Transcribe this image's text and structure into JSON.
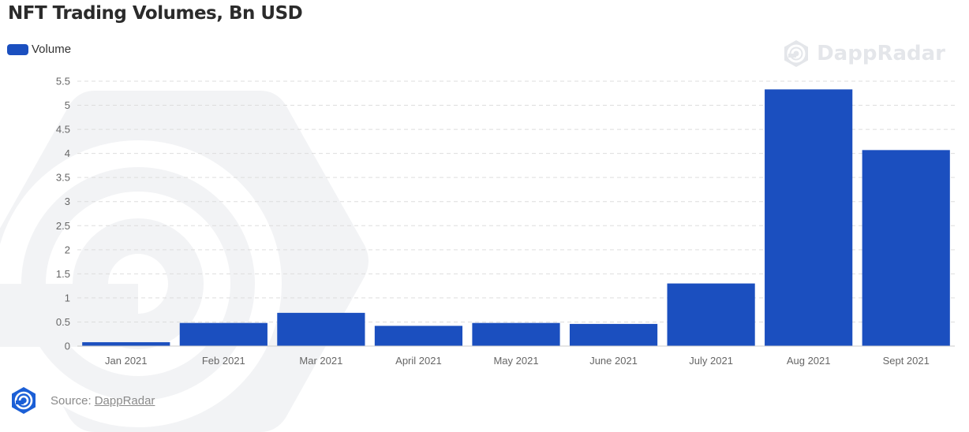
{
  "colors": {
    "bar": "#1b4fbf",
    "brand": "#1b5fd6",
    "gridline": "#dddddd",
    "watermark": "#f1f2f4"
  },
  "legend": {
    "icon": "legend-swatch",
    "label": "Volume"
  },
  "watermark": {
    "icon": "dappradar-icon",
    "text": "DappRadar"
  },
  "source": {
    "icon": "dappradar-icon",
    "prefix": "Source:",
    "link_text": "DappRadar"
  },
  "chart_data": {
    "type": "bar",
    "title": "NFT Trading Volumes, Bn USD",
    "xlabel": "",
    "ylabel": "",
    "categories": [
      "Jan 2021",
      "Feb 2021",
      "Mar 2021",
      "April 2021",
      "May 2021",
      "June 2021",
      "July 2021",
      "Aug 2021",
      "Sept 2021"
    ],
    "series": [
      {
        "name": "Volume",
        "values": [
          0.08,
          0.48,
          0.69,
          0.42,
          0.48,
          0.46,
          1.3,
          5.33,
          4.07
        ]
      }
    ],
    "ylim": [
      0,
      5.5
    ],
    "yticks": [
      "0",
      "0.5",
      "1",
      "1.5",
      "2",
      "2.5",
      "3",
      "3.5",
      "4",
      "4.5",
      "5",
      "5.5"
    ],
    "grid": true,
    "legend_position": "top-left"
  }
}
